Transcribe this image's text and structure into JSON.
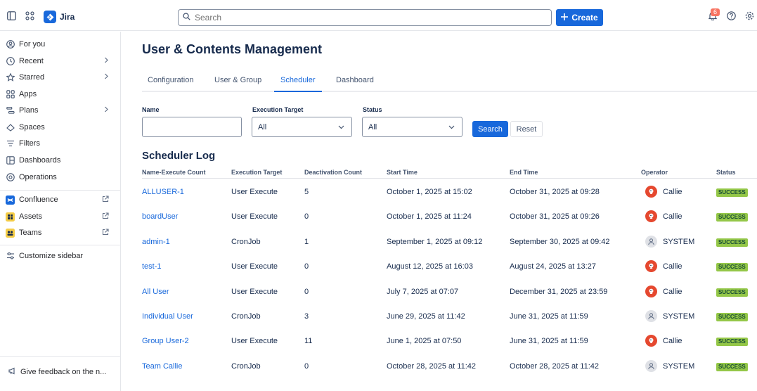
{
  "app": {
    "name": "Jira",
    "notification_count": "6"
  },
  "search": {
    "placeholder": "Search"
  },
  "create_label": "Create",
  "sidebar": {
    "items": [
      {
        "label": "For you",
        "icon": "user-circle-icon"
      },
      {
        "label": "Recent",
        "icon": "clock-icon",
        "chevron": true
      },
      {
        "label": "Starred",
        "icon": "star-icon",
        "chevron": true
      },
      {
        "label": "Apps",
        "icon": "apps-icon"
      },
      {
        "label": "Plans",
        "icon": "plans-icon",
        "chevron": true
      },
      {
        "label": "Spaces",
        "icon": "spaces-icon"
      },
      {
        "label": "Filters",
        "icon": "filter-icon"
      },
      {
        "label": "Dashboards",
        "icon": "dashboard-icon"
      },
      {
        "label": "Operations",
        "icon": "operations-icon"
      }
    ],
    "apps": [
      {
        "label": "Confluence",
        "icon": "confluence-icon",
        "color": "#1868db"
      },
      {
        "label": "Assets",
        "icon": "assets-icon",
        "color": "#f5cd47"
      },
      {
        "label": "Teams",
        "icon": "teams-icon",
        "color": "#f5cd47"
      }
    ],
    "customize_label": "Customize sidebar",
    "feedback_label": "Give feedback on the n..."
  },
  "page": {
    "title": "User & Contents Management",
    "tabs": [
      "Configuration",
      "User & Group",
      "Scheduler",
      "Dashboard"
    ],
    "active_tab": "Scheduler"
  },
  "filters": {
    "name_label": "Name",
    "name_value": "",
    "execution_target_label": "Execution Target",
    "execution_target_value": "All",
    "status_label": "Status",
    "status_value": "All",
    "search_label": "Search",
    "reset_label": "Reset"
  },
  "log": {
    "title": "Scheduler Log",
    "columns": [
      "Name-Execute Count",
      "Execution Target",
      "Deactivation Count",
      "Start Time",
      "End Time",
      "Operator",
      "Status"
    ],
    "rows": [
      {
        "name": "ALLUSER-1",
        "target": "User Execute",
        "count": "5",
        "start": "October 1, 2025 at 15:02",
        "end": "October 31, 2025 at 09:28",
        "operator": "Callie",
        "op_type": "user",
        "status": "SUCCESS"
      },
      {
        "name": "boardUser",
        "target": "User Execute",
        "count": "0",
        "start": "October 1, 2025 at 11:24",
        "end": "October 31, 2025 at 09:26",
        "operator": "Callie",
        "op_type": "user",
        "status": "SUCCESS"
      },
      {
        "name": "admin-1",
        "target": "CronJob",
        "count": "1",
        "start": "September 1, 2025 at 09:12",
        "end": "September 30, 2025 at 09:42",
        "operator": "SYSTEM",
        "op_type": "system",
        "status": "SUCCESS"
      },
      {
        "name": "test-1",
        "target": "User Execute",
        "count": "0",
        "start": "August 12, 2025 at 16:03",
        "end": "August 24, 2025 at 13:27",
        "operator": "Callie",
        "op_type": "user",
        "status": "SUCCESS"
      },
      {
        "name": "All User",
        "target": "User Execute",
        "count": "0",
        "start": "July 7, 2025 at 07:07",
        "end": "December 31, 2025 at 23:59",
        "operator": "Callie",
        "op_type": "user",
        "status": "SUCCESS"
      },
      {
        "name": "Individual User",
        "target": "CronJob",
        "count": "3",
        "start": "June 29, 2025 at 11:42",
        "end": "June 31, 2025 at 11:59",
        "operator": "SYSTEM",
        "op_type": "system",
        "status": "SUCCESS"
      },
      {
        "name": "Group User-2",
        "target": "User Execute",
        "count": "11",
        "start": "June 1, 2025 at 07:50",
        "end": "June 31, 2025 at 11:59",
        "operator": "Callie",
        "op_type": "user",
        "status": "SUCCESS"
      },
      {
        "name": "Team Callie",
        "target": "CronJob",
        "count": "0",
        "start": "October 28, 2025 at 11:42",
        "end": "October 28, 2025 at 11:42",
        "operator": "SYSTEM",
        "op_type": "system",
        "status": "SUCCESS"
      }
    ]
  }
}
